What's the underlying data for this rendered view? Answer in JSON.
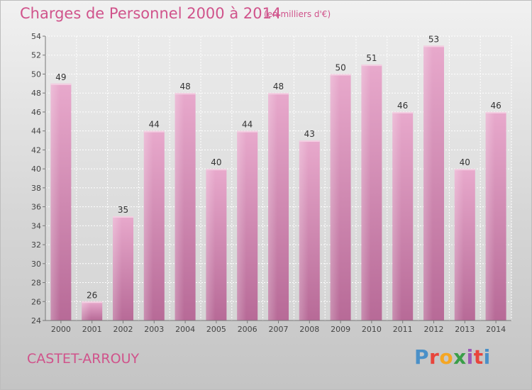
{
  "header": {
    "title": "Charges de Personnel 2000 à 2014",
    "subtitle": "(en milliers d'€)"
  },
  "footer": {
    "commune": "CASTET-ARROUY",
    "logo_text": "Proxiti"
  },
  "colors": {
    "bar": "#c9729f",
    "text_accent": "#d0538b",
    "logo_letters": [
      "#4a90c8",
      "#e8453c",
      "#f5a623",
      "#3a9e48",
      "#9b59b6",
      "#e8453c",
      "#4a90c8"
    ]
  },
  "chart_data": {
    "type": "bar",
    "title": "Charges de Personnel 2000 à 2014",
    "subtitle": "(en milliers d'€)",
    "categories": [
      "2000",
      "2001",
      "2002",
      "2003",
      "2004",
      "2005",
      "2006",
      "2007",
      "2008",
      "2009",
      "2010",
      "2011",
      "2012",
      "2013",
      "2014"
    ],
    "values": [
      49,
      26,
      35,
      44,
      48,
      40,
      44,
      48,
      43,
      50,
      51,
      46,
      53,
      40,
      46
    ],
    "ylim": [
      24,
      54
    ],
    "yticks": [
      24,
      26,
      28,
      30,
      32,
      34,
      36,
      38,
      40,
      42,
      44,
      46,
      48,
      50,
      52,
      54
    ],
    "grid": true,
    "data_labels": true
  }
}
